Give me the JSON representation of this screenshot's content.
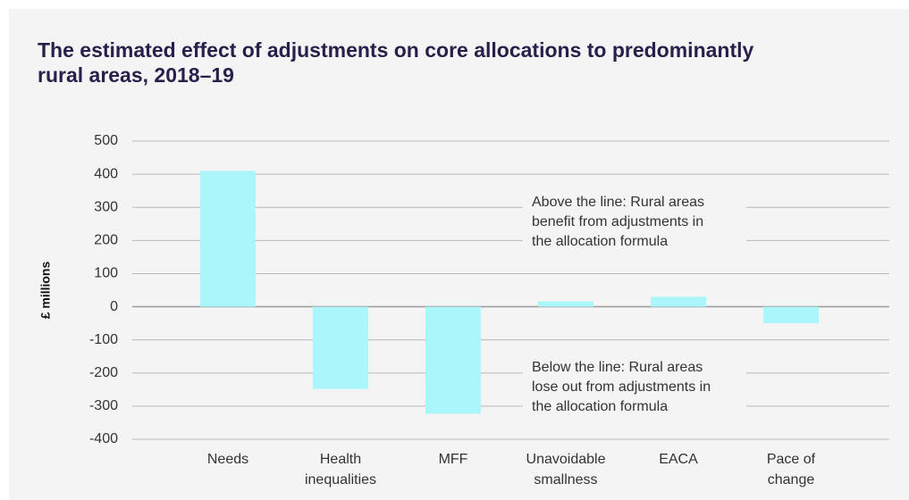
{
  "chart_data": {
    "type": "bar",
    "title": "The estimated effect of adjustments on core allocations to predominantly rural areas, 2018–19",
    "y_label": "£ millions",
    "categories": [
      "Needs",
      "Health inequalities",
      "MFF",
      "Unavoidable smallness",
      "EACA",
      "Pace of change"
    ],
    "values": [
      410,
      -248,
      -323,
      16,
      30,
      -50
    ],
    "color": "#a9f7fa",
    "ylim": [
      -400,
      500
    ],
    "yticks": [
      -400,
      -300,
      -200,
      -100,
      0,
      100,
      200,
      300,
      400,
      500
    ],
    "grid": true,
    "annotations": [
      "Above the line: Rural areas benefit from adjustments in the allocation formula",
      "Below the line: Rural areas lose out from adjustments in the allocation formula"
    ]
  }
}
